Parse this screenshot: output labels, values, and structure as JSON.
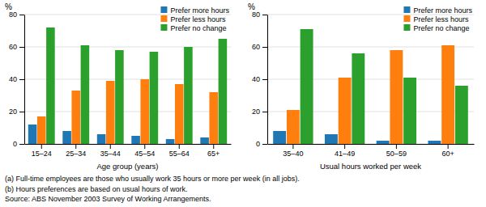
{
  "chart_data": [
    {
      "type": "bar",
      "categories": [
        "15–24",
        "25–34",
        "35–44",
        "45–54",
        "55–64",
        "65+"
      ],
      "series": [
        {
          "name": "Prefer more hours",
          "values": [
            12,
            8,
            6,
            5,
            3,
            4
          ]
        },
        {
          "name": "Prefer less hours",
          "values": [
            17,
            33,
            39,
            40,
            37,
            32
          ]
        },
        {
          "name": "Prefer no change",
          "values": [
            72,
            61,
            58,
            57,
            60,
            65
          ]
        }
      ],
      "xlabel": "Age group (years)",
      "ylabel": "%",
      "ylim": [
        0,
        80
      ],
      "yticks": [
        0,
        20,
        40,
        60,
        80
      ],
      "grid": true,
      "legend": "upper right"
    },
    {
      "type": "bar",
      "categories": [
        "35–40",
        "41–49",
        "50–59",
        "60+"
      ],
      "series": [
        {
          "name": "Prefer more hours",
          "values": [
            8,
            6,
            2,
            2
          ]
        },
        {
          "name": "Prefer less hours",
          "values": [
            21,
            41,
            58,
            61
          ]
        },
        {
          "name": "Prefer no change",
          "values": [
            71,
            56,
            41,
            36
          ]
        }
      ],
      "xlabel": "Usual hours worked per week",
      "ylabel": "%",
      "ylim": [
        0,
        80
      ],
      "yticks": [
        0,
        20,
        40,
        60,
        80
      ],
      "grid": true,
      "legend": "upper right"
    }
  ],
  "annotations": [
    "(a) Full-time employees are those who usually work 35 hours or more per week (in all jobs).",
    "(b) Hours preferences are based on usual hours of work.",
    "Source: ABS November 2003 Survey of Working Arrangements."
  ]
}
